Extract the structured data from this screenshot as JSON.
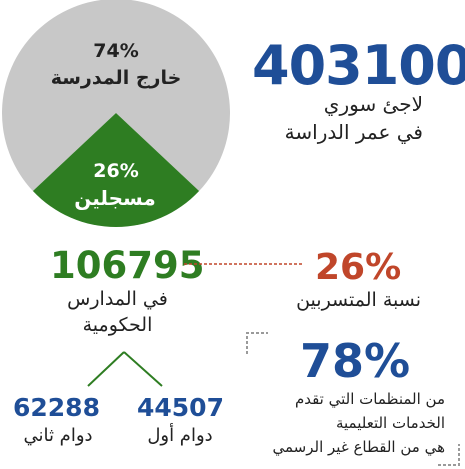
{
  "chart_data": {
    "type": "pie",
    "slices": [
      {
        "label": "خارج المدرسة",
        "value": 74,
        "display": "74%",
        "color": "#c8c8c8"
      },
      {
        "label": "مسجلين",
        "value": 26,
        "display": "26%",
        "color": "#2e7d22"
      }
    ]
  },
  "refugees": {
    "number": "403100",
    "line1": "لاجئ سوري",
    "line2": "في عمر الدراسة"
  },
  "enrolled": {
    "number": "106795",
    "line1": "في المدارس",
    "line2": "الحكومية"
  },
  "dropout": {
    "percent": "26%",
    "label": "نسبة المتسربين"
  },
  "shifts": [
    {
      "number": "62288",
      "label": "دوام ثاني"
    },
    {
      "number": "44507",
      "label": "دوام أول"
    }
  ],
  "organizations": {
    "percent": "78%",
    "line1": "من المنظمات التي تقدم",
    "line2": "الخدمات التعليمية",
    "line3": "هي من القطاع غير الرسمي"
  },
  "colors": {
    "blue": "#1f4e97",
    "green": "#2e7d22",
    "red": "#c0462a",
    "grey": "#c8c8c8"
  }
}
